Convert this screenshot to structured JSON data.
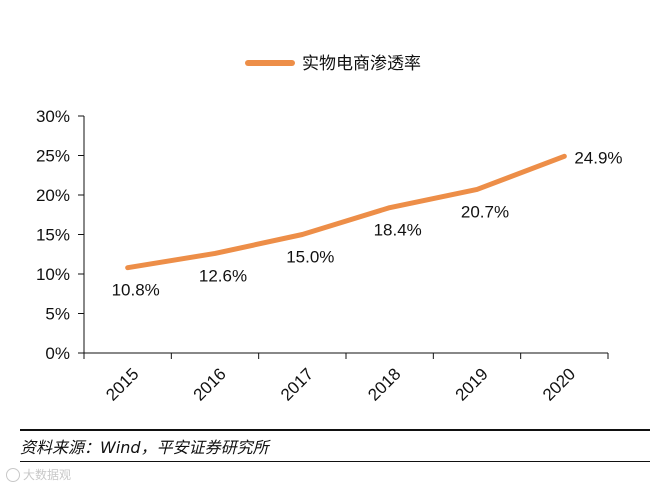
{
  "chart_data": {
    "type": "line",
    "categories": [
      "2015",
      "2016",
      "2017",
      "2018",
      "2019",
      "2020"
    ],
    "series": [
      {
        "name": "实物电商渗透率",
        "values": [
          10.8,
          12.6,
          15.0,
          18.4,
          20.7,
          24.9
        ],
        "labels": [
          "10.8%",
          "12.6%",
          "15.0%",
          "18.4%",
          "20.7%",
          "24.9%"
        ]
      }
    ],
    "y_ticks": [
      "0%",
      "5%",
      "10%",
      "15%",
      "20%",
      "25%",
      "30%"
    ],
    "ylim": [
      0,
      30
    ],
    "grid": false,
    "legend_position": "top",
    "line_color": "#ED8E48",
    "axis_color": "#111111"
  },
  "footer": {
    "source": "资料来源：Wind，平安证券研究所",
    "watermark": "大数据观"
  }
}
